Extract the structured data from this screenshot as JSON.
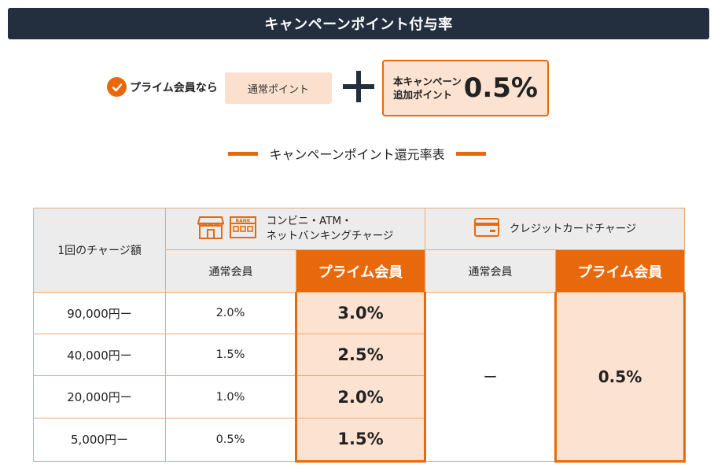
{
  "title": "キャンペーンポイント付与率",
  "formula": {
    "condition": "プライム会員なら",
    "normal_points": "通常ポイント",
    "bonus_label_line1": "本キャンペーン",
    "bonus_label_line2": "追加ポイント",
    "bonus_value": "0.5%"
  },
  "subtitle": "キャンペーンポイント還元率表",
  "table": {
    "charge_header": "1回のチャージ額",
    "group1_line1": "コンビニ・ATM・",
    "group1_line2": "ネットバンキングチャージ",
    "bank_sign": "BANK",
    "group2": "クレジットカードチャージ",
    "normal_member": "通常会員",
    "prime_member": "プライム会員",
    "rows": [
      {
        "amount": "90,000円ー",
        "normal": "2.0%",
        "prime": "3.0%"
      },
      {
        "amount": "40,000円ー",
        "normal": "1.5%",
        "prime": "2.5%"
      },
      {
        "amount": "20,000円ー",
        "normal": "1.0%",
        "prime": "2.0%"
      },
      {
        "amount": "5,000円ー",
        "normal": "0.5%",
        "prime": "1.5%"
      }
    ],
    "credit_normal": "ー",
    "credit_prime": "0.5%"
  },
  "colors": {
    "accent": "#e8690b",
    "dark": "#232f3e",
    "light_orange": "#fce3d1",
    "gray": "#ececec"
  }
}
